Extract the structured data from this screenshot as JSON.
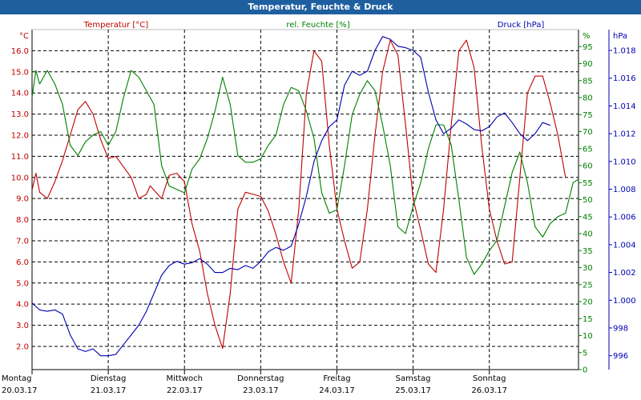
{
  "window": {
    "title": "Temperatur, Feuchte & Druck"
  },
  "colors": {
    "temperature": "#c00000",
    "humidity": "#008000",
    "pressure": "#0000b0",
    "grid": "#000000",
    "axis": "#000000"
  },
  "chart_data": {
    "type": "line",
    "title": "Temperatur, Feuchte & Druck",
    "legend": [
      "Temperatur [°C]",
      "rel. Feuchte [%]",
      "Druck [hPa]"
    ],
    "axes": {
      "left": {
        "unit": "°C",
        "min": 0.9,
        "max": 17.0,
        "ticks": [
          2.0,
          3.0,
          4.0,
          5.0,
          6.0,
          7.0,
          8.0,
          9.0,
          10.0,
          11.0,
          12.0,
          13.0,
          14.0,
          15.0,
          16.0
        ],
        "decimals": 1
      },
      "right1": {
        "unit": "%",
        "min": 0,
        "max": 100,
        "ticks": [
          0,
          5,
          10,
          15,
          20,
          25,
          30,
          35,
          40,
          45,
          50,
          55,
          60,
          65,
          70,
          75,
          80,
          85,
          90,
          95
        ]
      },
      "right2": {
        "unit": "hPa",
        "min": 995.0,
        "max": 1019.5,
        "ticks": [
          996,
          998,
          1.0,
          1.002,
          1.004,
          1.006,
          1.008,
          1.01,
          1.012,
          1.014,
          1.016,
          1.018
        ],
        "labels": [
          "996",
          "998",
          "1.000",
          "1.002",
          "1.004",
          "1.006",
          "1.008",
          "1.010",
          "1.012",
          "1.014",
          "1.016",
          "1.018"
        ]
      },
      "x": {
        "min": 0,
        "max": 7.17
      }
    },
    "x_labels": [
      {
        "day": "Montag",
        "date": "20.03.17",
        "x": 0
      },
      {
        "day": "Dienstag",
        "date": "21.03.17",
        "x": 1
      },
      {
        "day": "Mittwoch",
        "date": "22.03.17",
        "x": 2
      },
      {
        "day": "Donnerstag",
        "date": "23.03.17",
        "x": 3
      },
      {
        "day": "Freitag",
        "date": "24.03.17",
        "x": 4
      },
      {
        "day": "Samstag",
        "date": "25.03.17",
        "x": 5
      },
      {
        "day": "Sonntag",
        "date": "26.03.17",
        "x": 6
      }
    ],
    "series": [
      {
        "name": "Temperatur [°C]",
        "axis": "left",
        "color": "#c00000",
        "x": [
          0,
          0.05,
          0.1,
          0.2,
          0.3,
          0.4,
          0.5,
          0.6,
          0.7,
          0.8,
          0.9,
          1.0,
          1.1,
          1.2,
          1.3,
          1.4,
          1.5,
          1.55,
          1.6,
          1.7,
          1.8,
          1.9,
          2.0,
          2.1,
          2.2,
          2.3,
          2.4,
          2.5,
          2.6,
          2.7,
          2.8,
          2.9,
          3.0,
          3.1,
          3.2,
          3.3,
          3.4,
          3.5,
          3.6,
          3.7,
          3.8,
          3.9,
          4.0,
          4.1,
          4.2,
          4.3,
          4.4,
          4.5,
          4.6,
          4.7,
          4.8,
          4.9,
          5.0,
          5.1,
          5.2,
          5.3,
          5.4,
          5.5,
          5.6,
          5.7,
          5.8,
          5.9,
          6.0,
          6.1,
          6.2,
          6.3,
          6.4,
          6.5,
          6.6,
          6.7,
          6.8,
          6.9,
          7.0,
          7.1,
          7.17
        ],
        "values": [
          9.4,
          10.2,
          9.3,
          9.0,
          9.8,
          10.8,
          12.0,
          13.2,
          13.6,
          13.0,
          11.8,
          10.9,
          11.0,
          10.5,
          10.0,
          9.0,
          9.2,
          9.6,
          9.4,
          9.0,
          10.1,
          10.2,
          9.8,
          7.8,
          6.5,
          4.5,
          3.0,
          1.9,
          4.5,
          8.5,
          9.3,
          9.2,
          9.1,
          8.4,
          7.3,
          6.0,
          5.0,
          8.5,
          14.0,
          16.0,
          15.5,
          11.5,
          8.5,
          7.0,
          5.7,
          6.0,
          8.5,
          12.0,
          15.0,
          16.5,
          15.8,
          12.5,
          9.0,
          7.5,
          5.9,
          5.5,
          8.5,
          12.5,
          16.0,
          16.5,
          15.2,
          11.5,
          8.5,
          7.0,
          5.9,
          6.0,
          10.0,
          14.0,
          14.8,
          14.8,
          13.5,
          12.0,
          10.0,
          null,
          null
        ]
      },
      {
        "name": "rel. Feuchte [%]",
        "axis": "right1",
        "color": "#008000",
        "x": [
          0,
          0.05,
          0.1,
          0.2,
          0.3,
          0.4,
          0.5,
          0.6,
          0.7,
          0.8,
          0.9,
          1.0,
          1.1,
          1.2,
          1.3,
          1.4,
          1.5,
          1.6,
          1.7,
          1.8,
          1.9,
          2.0,
          2.1,
          2.2,
          2.3,
          2.4,
          2.5,
          2.6,
          2.7,
          2.8,
          2.9,
          3.0,
          3.1,
          3.2,
          3.3,
          3.4,
          3.5,
          3.6,
          3.7,
          3.8,
          3.9,
          4.0,
          4.1,
          4.2,
          4.3,
          4.4,
          4.5,
          4.6,
          4.7,
          4.8,
          4.9,
          5.0,
          5.1,
          5.2,
          5.3,
          5.4,
          5.5,
          5.6,
          5.7,
          5.8,
          5.9,
          6.0,
          6.1,
          6.2,
          6.3,
          6.4,
          6.5,
          6.6,
          6.7,
          6.8,
          6.9,
          7.0,
          7.1,
          7.17
        ],
        "values": [
          80,
          88,
          84,
          88,
          84,
          78,
          66,
          63,
          67,
          69,
          70,
          66,
          70,
          80,
          88,
          86,
          82,
          78,
          60,
          54,
          53,
          52,
          59,
          62,
          68,
          76,
          86,
          78,
          63,
          61,
          61,
          62,
          66,
          69,
          78,
          83,
          82,
          76,
          68,
          52,
          46,
          47,
          60,
          75,
          81,
          85,
          82,
          72,
          60,
          42,
          40,
          48,
          55,
          65,
          72,
          72,
          66,
          50,
          33,
          28,
          31,
          35,
          38,
          48,
          58,
          64,
          55,
          42,
          39,
          43,
          45,
          46,
          55,
          56
        ]
      },
      {
        "name": "Druck [hPa]",
        "axis": "right2",
        "color": "#0000b0",
        "x": [
          0,
          0.1,
          0.2,
          0.3,
          0.4,
          0.5,
          0.6,
          0.7,
          0.8,
          0.9,
          1.0,
          1.1,
          1.2,
          1.3,
          1.4,
          1.5,
          1.6,
          1.7,
          1.8,
          1.9,
          2.0,
          2.1,
          2.2,
          2.3,
          2.4,
          2.5,
          2.6,
          2.7,
          2.8,
          2.9,
          3.0,
          3.1,
          3.2,
          3.3,
          3.4,
          3.5,
          3.6,
          3.7,
          3.8,
          3.9,
          4.0,
          4.1,
          4.2,
          4.3,
          4.4,
          4.5,
          4.6,
          4.7,
          4.8,
          4.9,
          5.0,
          5.1,
          5.2,
          5.3,
          5.4,
          5.5,
          5.6,
          5.7,
          5.8,
          5.9,
          6.0,
          6.1,
          6.2,
          6.3,
          6.4,
          6.5,
          6.6,
          6.7,
          6.8,
          6.9,
          7.0,
          7.1,
          7.17
        ],
        "values": [
          999.8,
          999.3,
          999.2,
          999.3,
          999.0,
          997.5,
          996.5,
          996.3,
          996.5,
          996.0,
          996.0,
          996.1,
          996.8,
          997.5,
          998.2,
          999.2,
          1000.5,
          1001.8,
          1002.5,
          1002.8,
          1002.6,
          1002.7,
          1003.0,
          1002.6,
          1002.0,
          1002.0,
          1002.3,
          1002.2,
          1002.5,
          1002.3,
          1002.8,
          1003.5,
          1003.8,
          1003.6,
          1003.9,
          1005.5,
          1007.5,
          1010.0,
          1011.5,
          1012.5,
          1013.0,
          1015.5,
          1016.5,
          1016.2,
          1016.5,
          1018.0,
          1019.0,
          1018.8,
          1018.3,
          1018.2,
          1018.0,
          1017.5,
          1015.0,
          1013.0,
          1012.0,
          1012.4,
          1013.0,
          1012.7,
          1012.3,
          1012.2,
          1012.5,
          1013.2,
          1013.5,
          1012.8,
          1012.0,
          1011.5,
          1012.0,
          1012.8,
          1012.6,
          null,
          null,
          null,
          null
        ]
      }
    ]
  }
}
